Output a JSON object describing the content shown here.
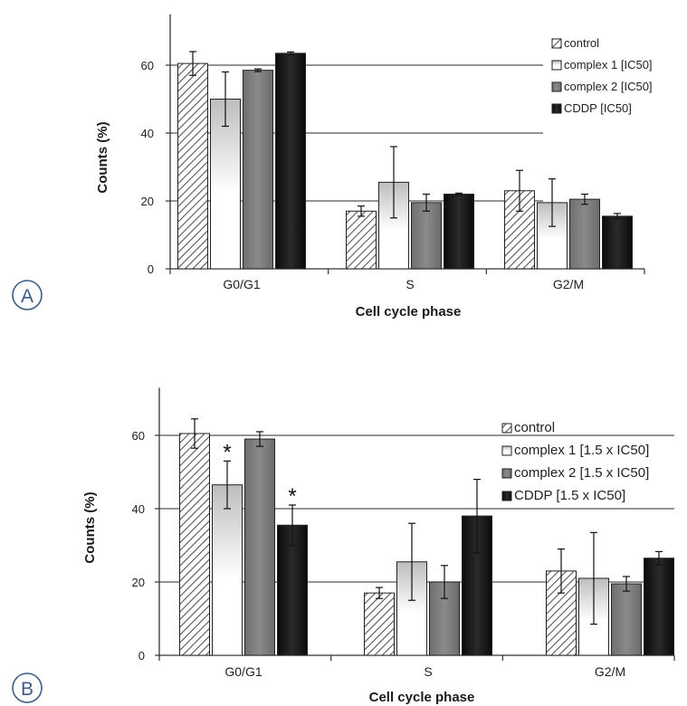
{
  "panels": [
    {
      "panel_label": "A",
      "chart_data": {
        "type": "bar",
        "title": "",
        "xlabel": "Cell cycle phase",
        "ylabel": "Counts (%)",
        "ylim": [
          0,
          75
        ],
        "yticks": [
          0,
          20,
          40,
          60
        ],
        "grid": "horizontal lines at 20, 40, 60",
        "legend_position": "top-right",
        "categories": [
          "G0/G1",
          "S",
          "G2/M"
        ],
        "series": [
          {
            "name": "control",
            "fill": "hatch",
            "values": [
              60.5,
              17,
              23
            ],
            "errors": [
              3.5,
              1.5,
              6
            ]
          },
          {
            "name": "complex 1 [IC50]",
            "fill": "white-gradient",
            "values": [
              50,
              25.5,
              19.5
            ],
            "errors": [
              8,
              10.5,
              7
            ]
          },
          {
            "name": "complex 2 [IC50]",
            "fill": "grey",
            "values": [
              58.5,
              19.5,
              20.5
            ],
            "errors": [
              0.4,
              2.5,
              1.5
            ]
          },
          {
            "name": "CDDP [IC50]",
            "fill": "black",
            "values": [
              63.5,
              22,
              15.5
            ],
            "errors": [
              0.4,
              0.3,
              0.8
            ]
          }
        ],
        "annotations": []
      }
    },
    {
      "panel_label": "B",
      "chart_data": {
        "type": "bar",
        "title": "",
        "xlabel": "Cell cycle phase",
        "ylabel": "Counts (%)",
        "ylim": [
          0,
          73
        ],
        "yticks": [
          0,
          20,
          40,
          60
        ],
        "grid": "horizontal lines at 20, 40, 60",
        "legend_position": "top-right",
        "categories": [
          "G0/G1",
          "S",
          "G2/M"
        ],
        "series": [
          {
            "name": "control",
            "fill": "hatch",
            "values": [
              60.5,
              17,
              23
            ],
            "errors": [
              4,
              1.5,
              6
            ]
          },
          {
            "name": "complex 1 [1.5 x IC50]",
            "fill": "white-gradient",
            "values": [
              46.5,
              25.5,
              21
            ],
            "errors": [
              6.5,
              10.5,
              12.5
            ]
          },
          {
            "name": "complex 2 [1.5 x IC50]",
            "fill": "grey",
            "values": [
              59,
              20,
              19.5
            ],
            "errors": [
              2,
              4.5,
              2
            ]
          },
          {
            "name": "CDDP [1.5 x IC50]",
            "fill": "black",
            "values": [
              35.5,
              38,
              26.5
            ],
            "errors": [
              5.5,
              10,
              1.8
            ]
          }
        ],
        "annotations": [
          {
            "text": "*",
            "category": "G0/G1",
            "series": "complex 1 [1.5 x IC50]"
          },
          {
            "text": "*",
            "category": "G0/G1",
            "series": "CDDP [1.5 x IC50]"
          }
        ]
      }
    }
  ]
}
